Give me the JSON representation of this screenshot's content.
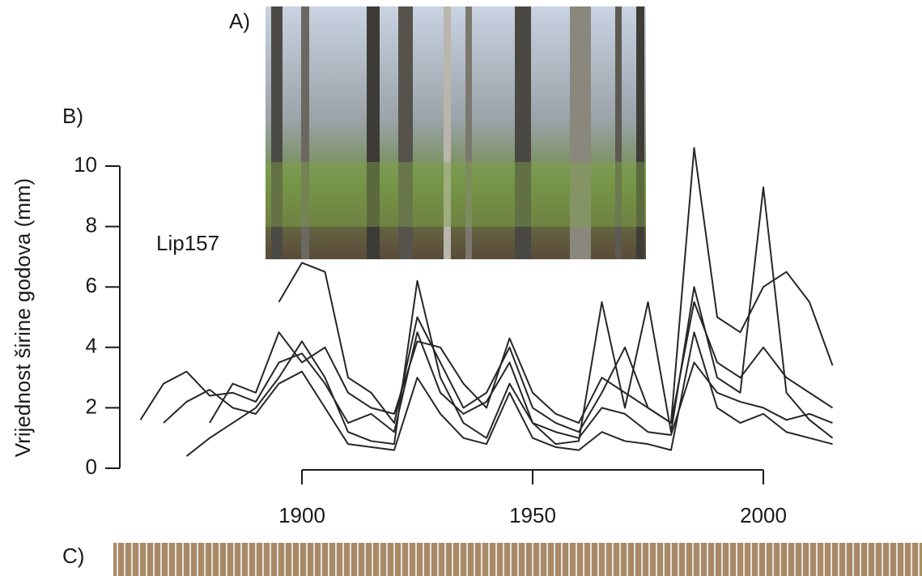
{
  "chart_data": {
    "type": "line",
    "y_label": "Vrijednost širine godova (mm)",
    "annotation": "Lip157",
    "panel_labels": [
      "A)",
      "B)",
      "C)"
    ],
    "color": "#262626",
    "x": [
      1865,
      1870,
      1875,
      1880,
      1885,
      1890,
      1895,
      1900,
      1905,
      1910,
      1915,
      1920,
      1925,
      1930,
      1935,
      1940,
      1945,
      1950,
      1955,
      1960,
      1965,
      1970,
      1975,
      1980,
      1985,
      1990,
      1995,
      2000,
      2005,
      2010,
      2015
    ],
    "series": [
      {
        "values": [
          1.6,
          2.8,
          3.2,
          2.4,
          2.5,
          2.2,
          3.5,
          3.8,
          2.8,
          1.5,
          1.8,
          1.2,
          4.5,
          2.5,
          1.8,
          2.2,
          3.5,
          1.5,
          1.2,
          1.0,
          2.0,
          1.8,
          1.2,
          1.1,
          3.5,
          2.5,
          2.2,
          2.0,
          1.6,
          1.8,
          1.5
        ]
      },
      {
        "values": [
          null,
          null,
          null,
          null,
          null,
          null,
          5.5,
          6.8,
          6.5,
          3.0,
          2.5,
          1.5,
          5.0,
          3.5,
          2.0,
          2.5,
          4.0,
          2.0,
          1.5,
          1.2,
          2.5,
          4.0,
          2.0,
          1.5,
          10.6,
          5.0,
          4.5,
          6.0,
          6.5,
          5.5,
          3.4
        ]
      },
      {
        "values": [
          null,
          null,
          0.4,
          1.0,
          1.5,
          2.0,
          3.0,
          4.2,
          3.0,
          1.2,
          0.9,
          0.8,
          6.2,
          3.0,
          1.5,
          1.0,
          2.8,
          1.5,
          0.8,
          0.9,
          5.5,
          2.0,
          5.5,
          1.2,
          6.0,
          3.0,
          2.5,
          9.3,
          2.5,
          1.6,
          1.0
        ]
      },
      {
        "values": [
          null,
          1.5,
          2.2,
          2.6,
          2.0,
          1.8,
          2.8,
          3.2,
          2.0,
          0.8,
          0.7,
          0.6,
          3.0,
          1.8,
          1.0,
          0.8,
          2.5,
          1.0,
          0.7,
          0.6,
          1.2,
          0.9,
          0.8,
          0.6,
          4.5,
          2.0,
          1.5,
          1.8,
          1.2,
          1.0,
          0.8
        ]
      },
      {
        "values": [
          null,
          null,
          null,
          1.5,
          2.8,
          2.5,
          4.5,
          3.5,
          4.0,
          2.5,
          2.0,
          1.8,
          4.2,
          4.0,
          2.8,
          2.0,
          4.3,
          2.5,
          1.8,
          1.5,
          3.0,
          2.5,
          2.0,
          1.5,
          5.5,
          3.5,
          3.0,
          4.0,
          3.0,
          2.5,
          2.0
        ]
      }
    ],
    "xlim": [
      1860,
      2020
    ],
    "xticks": [
      1900,
      1950,
      2000
    ],
    "ylim": [
      0,
      10
    ],
    "yticks": [
      0,
      2,
      4,
      6,
      8,
      10
    ]
  }
}
